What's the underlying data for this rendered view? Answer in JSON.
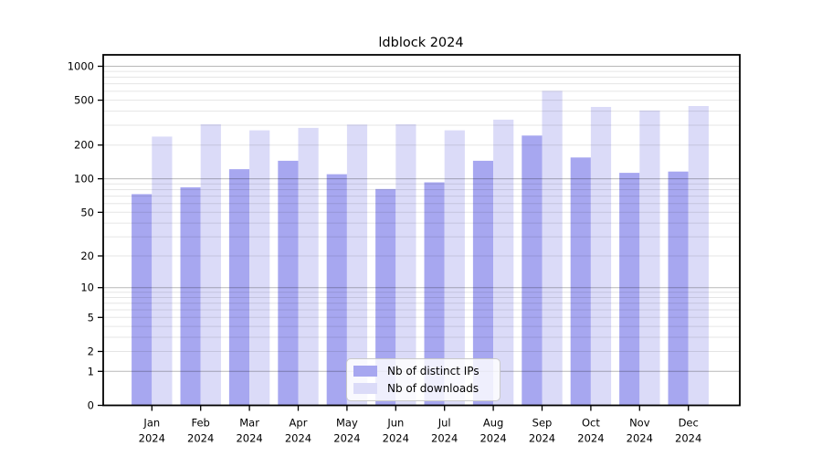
{
  "figure": {
    "background": "#ffffff",
    "axis_color": "#000000"
  },
  "chart_data": {
    "type": "bar",
    "title": "ldblock 2024",
    "categories": [
      "Jan 2024",
      "Feb 2024",
      "Mar 2024",
      "Apr 2024",
      "May 2024",
      "Jun 2024",
      "Jul 2024",
      "Aug 2024",
      "Sep 2024",
      "Oct 2024",
      "Nov 2024",
      "Dec 2024"
    ],
    "month_labels": [
      "Jan",
      "Feb",
      "Mar",
      "Apr",
      "May",
      "Jun",
      "Jul",
      "Aug",
      "Sep",
      "Oct",
      "Nov",
      "Dec"
    ],
    "year_label": "2024",
    "series": [
      {
        "name": "Nb of distinct IPs",
        "color": "#a7a7f0",
        "values": [
          73,
          84,
          122,
          145,
          110,
          81,
          93,
          145,
          243,
          155,
          113,
          116
        ]
      },
      {
        "name": "Nb of downloads",
        "color": "#dbdbf8",
        "values": [
          238,
          306,
          270,
          284,
          304,
          306,
          270,
          336,
          605,
          436,
          405,
          444
        ]
      }
    ],
    "y_ticks": [
      0,
      1,
      2,
      5,
      10,
      20,
      50,
      100,
      200,
      500,
      1000
    ],
    "y_scale": "log10(value+1)",
    "ylim": [
      0,
      1261
    ],
    "xlabel": "",
    "ylabel": "",
    "legend_position": "inside-bottom-center",
    "grid": {
      "orientation": "horizontal",
      "minor_color": "rgba(0,0,0,0.10)",
      "major_color": "rgba(0,0,0,0.28)",
      "major_at": [
        1,
        10,
        100,
        1000
      ]
    }
  }
}
